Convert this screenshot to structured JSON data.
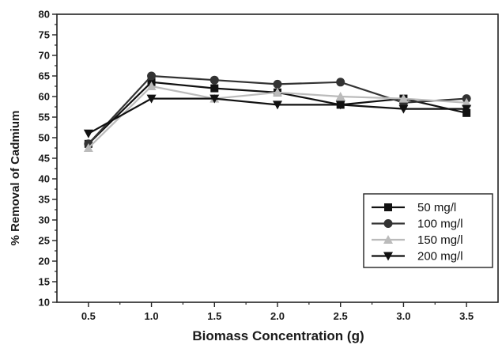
{
  "chart_data": {
    "type": "line",
    "title": "",
    "xlabel": "Biomass Concentration (g)",
    "ylabel": "% Removal of Cadmium",
    "x": [
      0.5,
      1.0,
      1.5,
      2.0,
      2.5,
      3.0,
      3.5
    ],
    "x_tick_labels": [
      "0.5",
      "1.0",
      "1.5",
      "2.0",
      "2.5",
      "3.0",
      "3.5"
    ],
    "xlim": [
      0.25,
      3.75
    ],
    "ylim": [
      10,
      80
    ],
    "y_ticks": [
      10,
      15,
      20,
      25,
      30,
      35,
      40,
      45,
      50,
      55,
      60,
      65,
      70,
      75,
      80
    ],
    "grid": false,
    "legend_position": "bottom-right",
    "series": [
      {
        "name": "50 mg/l",
        "marker": "square",
        "color": "#111111",
        "values": [
          48.5,
          63.5,
          62.0,
          61.0,
          58.0,
          59.5,
          56.0
        ]
      },
      {
        "name": "100 mg/l",
        "marker": "circle",
        "color": "#333333",
        "values": [
          48.5,
          65.0,
          64.0,
          63.0,
          63.5,
          58.5,
          59.5
        ]
      },
      {
        "name": "150 mg/l",
        "marker": "triangle-up",
        "color": "#bbbbbb",
        "values": [
          47.5,
          62.5,
          59.5,
          61.0,
          60.0,
          59.5,
          58.5
        ]
      },
      {
        "name": "200 mg/l",
        "marker": "triangle-down",
        "color": "#111111",
        "values": [
          51.0,
          59.5,
          59.5,
          58.0,
          58.0,
          57.0,
          57.0
        ]
      }
    ]
  }
}
